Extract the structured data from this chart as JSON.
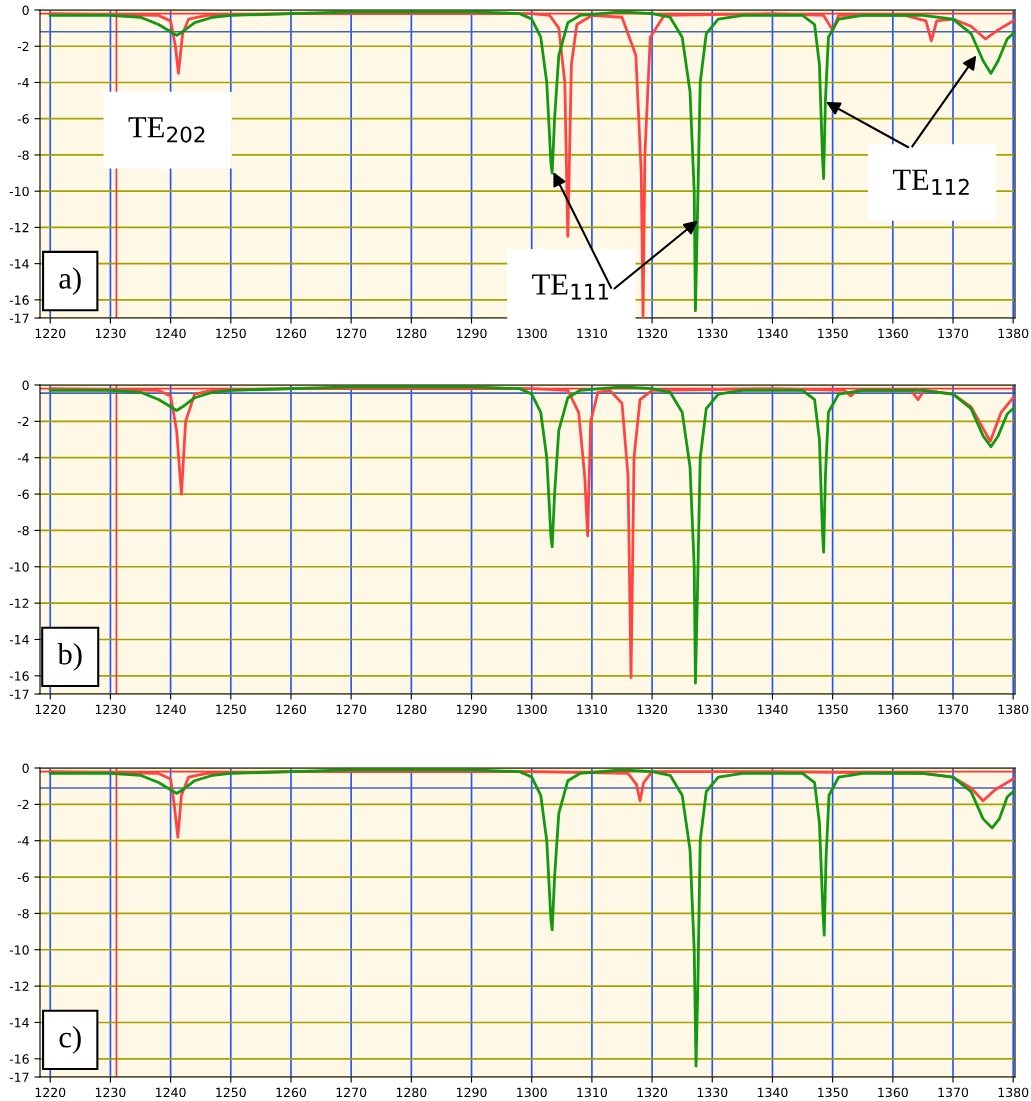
{
  "chart_data": [
    {
      "type": "line",
      "xlim": [
        1218.3,
        1380.3
      ],
      "xticks": [
        1220,
        1230,
        1240,
        1250,
        1260,
        1270,
        1280,
        1290,
        1300,
        1310,
        1320,
        1330,
        1340,
        1350,
        1360,
        1370,
        1380
      ],
      "ylim": [
        -17,
        0
      ],
      "yticks": [
        0,
        -2,
        -4,
        -6,
        -8,
        -10,
        -12,
        -14,
        -16,
        -17
      ],
      "grid": true,
      "series": [
        {
          "color": "#ff4444",
          "x": [
            1220,
            1238,
            1240,
            1240.8,
            1241.3,
            1242,
            1243,
            1246,
            1260,
            1300,
            1303,
            1304.5,
            1305.5,
            1306,
            1306.6,
            1307.5,
            1310,
            1315,
            1317.3,
            1318.2,
            1318.5,
            1318.8,
            1319.7,
            1322,
            1340,
            1348.5,
            1350,
            1351,
            1362,
            1365.5,
            1366.4,
            1367.3,
            1370,
            1373,
            1375.4,
            1377.5,
            1380
          ],
          "values": [
            -0.2,
            -0.3,
            -0.6,
            -2,
            -3.5,
            -1.3,
            -0.5,
            -0.3,
            -0.2,
            -0.2,
            -0.3,
            -1,
            -4,
            -12.5,
            -3,
            -0.8,
            -0.3,
            -0.4,
            -2.5,
            -9,
            -17,
            -8,
            -1.5,
            -0.3,
            -0.2,
            -0.3,
            -1.1,
            -0.3,
            -0.3,
            -0.6,
            -1.7,
            -0.6,
            -0.5,
            -0.9,
            -1.6,
            -1.1,
            -0.6
          ]
        },
        {
          "color": "#119911",
          "x": [
            1220,
            1230,
            1235,
            1238,
            1240,
            1241,
            1242,
            1244,
            1247,
            1250,
            1260,
            1270,
            1290,
            1298,
            1300,
            1301.5,
            1302.5,
            1303.2,
            1303.4,
            1303.8,
            1304.5,
            1306,
            1308,
            1315,
            1320,
            1323,
            1325,
            1326.3,
            1327,
            1327.2,
            1327.5,
            1328,
            1329,
            1331,
            1335,
            1345,
            1347,
            1347.8,
            1348.3,
            1348.5,
            1348.8,
            1349.3,
            1351,
            1355,
            1365,
            1370,
            1373,
            1375,
            1376.3,
            1377.5,
            1379,
            1380
          ],
          "values": [
            -0.3,
            -0.3,
            -0.4,
            -0.8,
            -1.2,
            -1.4,
            -1.2,
            -0.7,
            -0.4,
            -0.3,
            -0.2,
            -0.1,
            -0.1,
            -0.2,
            -0.5,
            -1.5,
            -4,
            -8.5,
            -9,
            -6,
            -2.5,
            -0.7,
            -0.3,
            -0.1,
            -0.2,
            -0.4,
            -1.5,
            -4.5,
            -10,
            -16.6,
            -12,
            -4,
            -1.3,
            -0.5,
            -0.3,
            -0.3,
            -0.8,
            -3,
            -8,
            -9.3,
            -5,
            -1.5,
            -0.5,
            -0.3,
            -0.3,
            -0.5,
            -1.3,
            -2.8,
            -3.5,
            -2.8,
            -1.6,
            -1.3
          ]
        }
      ],
      "ref_lines": [
        {
          "axis": "x",
          "value": 1231,
          "color": "#ff3333"
        },
        {
          "axis": "y",
          "value": -0.2,
          "color": "#ff3333"
        },
        {
          "axis": "y",
          "value": -1.2,
          "color": "#4466aa"
        }
      ],
      "annotations": [
        "a)",
        "TE$_{202}$",
        {
          "text": "TE$_{111}$",
          "x": 1303.4,
          "y": -8.8
        },
        {
          "text": "TE$_{112}$",
          "x": 1348.5,
          "y": -5.0
        }
      ]
    },
    {
      "type": "line",
      "xlim": [
        1218.3,
        1380.3
      ],
      "xticks": [
        1220,
        1230,
        1240,
        1250,
        1260,
        1270,
        1280,
        1290,
        1300,
        1310,
        1320,
        1330,
        1340,
        1350,
        1360,
        1370,
        1380
      ],
      "ylim": [
        -17,
        0
      ],
      "yticks": [
        0,
        -2,
        -4,
        -6,
        -8,
        -10,
        -12,
        -14,
        -16,
        -17
      ],
      "grid": true,
      "series": [
        {
          "color": "#ff4444",
          "x": [
            1220,
            1238,
            1240,
            1241,
            1241.8,
            1242.5,
            1244,
            1247,
            1260,
            1300,
            1306,
            1307.8,
            1308.8,
            1309.3,
            1309.8,
            1311,
            1313,
            1315,
            1316,
            1316.5,
            1317,
            1318,
            1320,
            1340,
            1352,
            1353,
            1354,
            1363,
            1364.2,
            1365.2,
            1370,
            1373,
            1376.2,
            1378,
            1380
          ],
          "values": [
            -0.2,
            -0.3,
            -0.6,
            -2.5,
            -6,
            -2,
            -0.5,
            -0.3,
            -0.2,
            -0.2,
            -0.3,
            -1.5,
            -5,
            -8.3,
            -2,
            -0.4,
            -0.3,
            -1,
            -5,
            -16.1,
            -4,
            -0.8,
            -0.3,
            -0.2,
            -0.3,
            -0.6,
            -0.3,
            -0.3,
            -0.8,
            -0.3,
            -0.5,
            -1.2,
            -3.1,
            -1.5,
            -0.7
          ]
        },
        {
          "color": "#119911",
          "x": [
            1220,
            1230,
            1235,
            1238,
            1240,
            1241,
            1242,
            1244,
            1247,
            1250,
            1260,
            1270,
            1290,
            1298,
            1300,
            1301.5,
            1302.5,
            1303.2,
            1303.4,
            1303.8,
            1304.5,
            1306,
            1308,
            1315,
            1320,
            1323,
            1325,
            1326.3,
            1327,
            1327.2,
            1327.5,
            1328,
            1329,
            1331,
            1335,
            1345,
            1347,
            1347.8,
            1348.3,
            1348.5,
            1348.8,
            1349.3,
            1351,
            1355,
            1365,
            1370,
            1373,
            1375,
            1376.3,
            1377.5,
            1379,
            1380
          ],
          "values": [
            -0.3,
            -0.3,
            -0.4,
            -0.8,
            -1.2,
            -1.4,
            -1.2,
            -0.7,
            -0.4,
            -0.3,
            -0.2,
            -0.1,
            -0.1,
            -0.2,
            -0.5,
            -1.5,
            -4,
            -8.4,
            -8.9,
            -6,
            -2.5,
            -0.7,
            -0.3,
            -0.1,
            -0.2,
            -0.4,
            -1.5,
            -4.5,
            -10,
            -16.4,
            -12,
            -4,
            -1.3,
            -0.5,
            -0.3,
            -0.3,
            -0.8,
            -3,
            -8,
            -9.2,
            -5,
            -1.5,
            -0.5,
            -0.3,
            -0.3,
            -0.5,
            -1.3,
            -2.8,
            -3.4,
            -2.8,
            -1.6,
            -1.3
          ]
        }
      ],
      "ref_lines": [
        {
          "axis": "x",
          "value": 1231,
          "color": "#ff3333"
        },
        {
          "axis": "y",
          "value": -0.2,
          "color": "#ff3333"
        },
        {
          "axis": "y",
          "value": -0.45,
          "color": "#4466aa"
        }
      ],
      "annotations": [
        "b)"
      ]
    },
    {
      "type": "line",
      "xlim": [
        1218.3,
        1380.3
      ],
      "xticks": [
        1220,
        1230,
        1240,
        1250,
        1260,
        1270,
        1280,
        1290,
        1300,
        1310,
        1320,
        1330,
        1340,
        1350,
        1360,
        1370,
        1380
      ],
      "ylim": [
        -17,
        0
      ],
      "yticks": [
        0,
        -2,
        -4,
        -6,
        -8,
        -10,
        -12,
        -14,
        -16,
        -17
      ],
      "grid": true,
      "series": [
        {
          "color": "#ff4444",
          "x": [
            1220,
            1238,
            1240,
            1240.6,
            1241.2,
            1241.8,
            1243,
            1246,
            1260,
            1300,
            1316,
            1317.4,
            1318,
            1318.6,
            1320,
            1340,
            1365,
            1370,
            1373,
            1375,
            1377,
            1380
          ],
          "values": [
            -0.2,
            -0.3,
            -0.6,
            -2,
            -3.8,
            -1.5,
            -0.5,
            -0.3,
            -0.2,
            -0.2,
            -0.3,
            -0.9,
            -1.8,
            -0.8,
            -0.2,
            -0.2,
            -0.3,
            -0.5,
            -1.1,
            -1.8,
            -1.2,
            -0.6
          ]
        },
        {
          "color": "#119911",
          "x": [
            1220,
            1230,
            1235,
            1238,
            1240,
            1241,
            1242,
            1244,
            1247,
            1250,
            1260,
            1270,
            1290,
            1298,
            1300,
            1301.5,
            1302.5,
            1303.2,
            1303.4,
            1303.8,
            1304.5,
            1306,
            1308,
            1315,
            1320,
            1323,
            1325,
            1326.3,
            1327,
            1327.3,
            1327.6,
            1328,
            1329,
            1331,
            1335,
            1345,
            1347,
            1347.8,
            1348.4,
            1348.6,
            1348.9,
            1349.4,
            1351,
            1355,
            1365,
            1370,
            1373,
            1375,
            1376.5,
            1377.7,
            1379,
            1380
          ],
          "values": [
            -0.3,
            -0.3,
            -0.4,
            -0.8,
            -1.2,
            -1.4,
            -1.2,
            -0.7,
            -0.4,
            -0.3,
            -0.2,
            -0.1,
            -0.1,
            -0.2,
            -0.5,
            -1.5,
            -4,
            -8.4,
            -8.9,
            -6,
            -2.5,
            -0.7,
            -0.3,
            -0.1,
            -0.2,
            -0.4,
            -1.5,
            -4.5,
            -10,
            -16.4,
            -12,
            -4,
            -1.3,
            -0.5,
            -0.3,
            -0.3,
            -0.8,
            -3,
            -8,
            -9.2,
            -5,
            -1.5,
            -0.5,
            -0.3,
            -0.3,
            -0.5,
            -1.3,
            -2.8,
            -3.3,
            -2.8,
            -1.6,
            -1.3
          ]
        }
      ],
      "ref_lines": [
        {
          "axis": "x",
          "value": 1231,
          "color": "#ff3333"
        },
        {
          "axis": "y",
          "value": -0.2,
          "color": "#ff3333"
        },
        {
          "axis": "y",
          "value": -1.1,
          "color": "#4466aa"
        }
      ],
      "annotations": [
        "c)"
      ]
    }
  ]
}
